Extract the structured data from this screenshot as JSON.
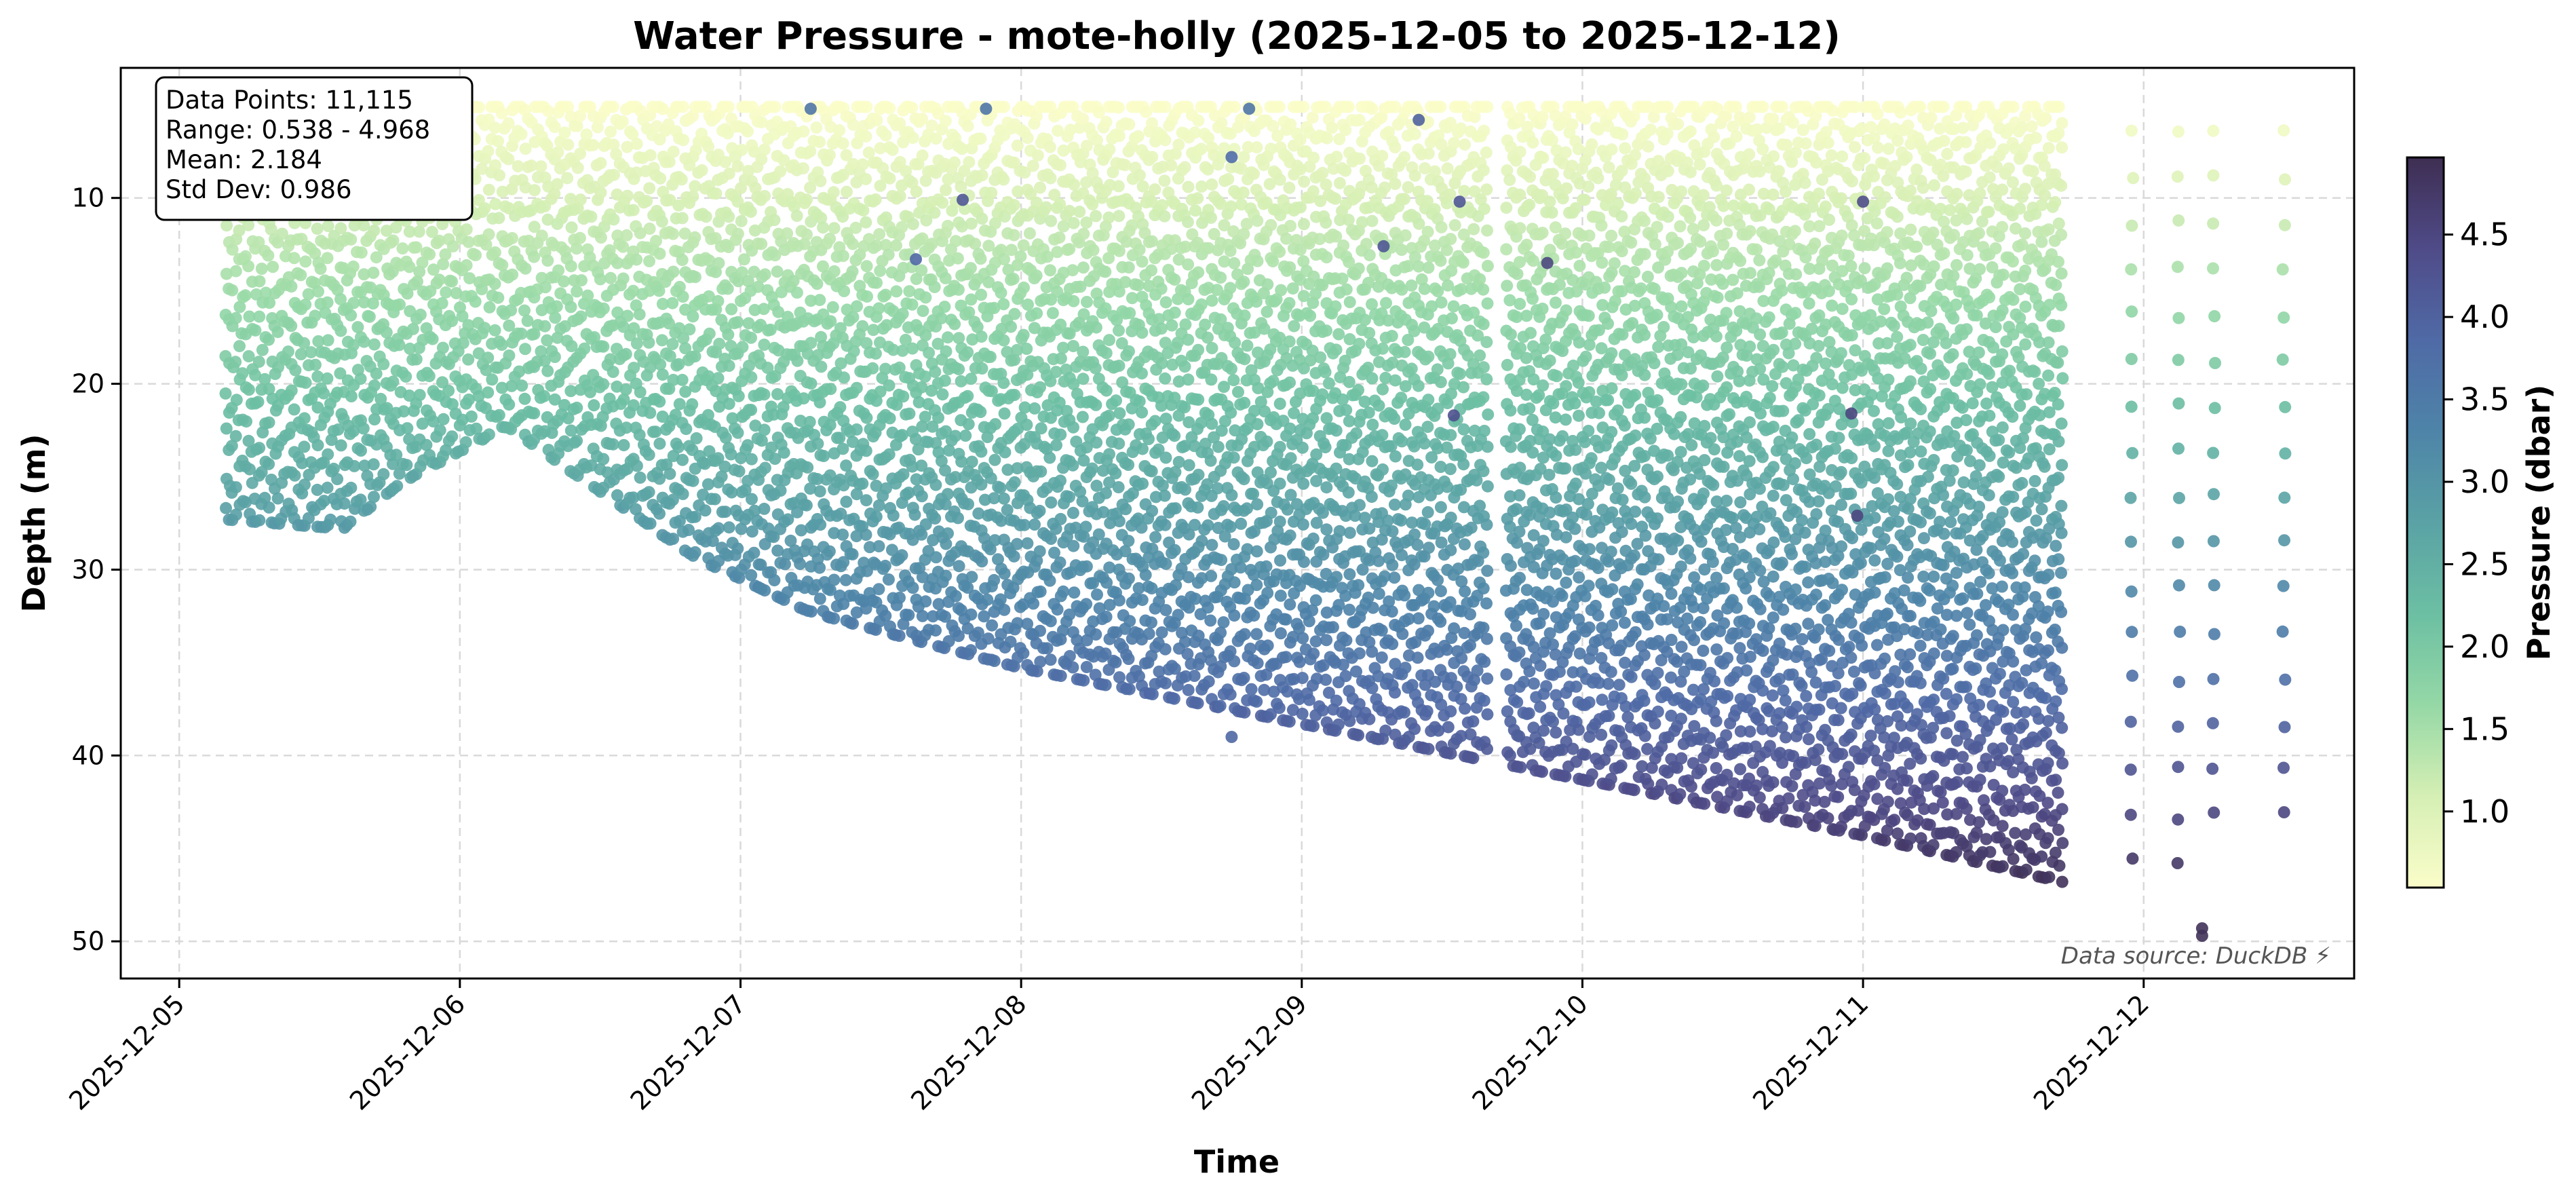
{
  "chart_data": {
    "type": "scatter",
    "title": "Water Pressure - mote-holly (2025-12-05 to 2025-12-12)",
    "xlabel": "Time",
    "ylabel": "Depth (m)",
    "colorbar_label": "Pressure (dbar)",
    "x_ticks": [
      "2025-12-05",
      "2025-12-06",
      "2025-12-07",
      "2025-12-08",
      "2025-12-09",
      "2025-12-10",
      "2025-12-11",
      "2025-12-12"
    ],
    "y_ticks": [
      10,
      20,
      30,
      40,
      50
    ],
    "colorbar_ticks": [
      "1.0",
      "1.5",
      "2.0",
      "2.5",
      "3.0",
      "3.5",
      "4.0",
      "4.5"
    ],
    "xlim": [
      "2025-12-04 19:00",
      "2025-12-12 18:00"
    ],
    "ylim": [
      52,
      3
    ],
    "y_inverted": true,
    "color_range": [
      0.538,
      4.968
    ],
    "colormap": [
      "#fbfdc9",
      "#d5efb4",
      "#95d8a6",
      "#6cbfa3",
      "#5aa2a5",
      "#4e84a8",
      "#4f6aa6",
      "#4f4b88",
      "#3e2e52"
    ],
    "grid": true,
    "stats_box": {
      "lines": [
        "Data Points: 11,115",
        "Range: 0.538 - 4.968",
        "Mean: 2.184",
        "Std Dev: 0.986"
      ],
      "location": "top-left"
    },
    "annotation": "Data source: DuckDB ⚡",
    "annotation_location": "bottom-right",
    "depth_envelope": {
      "description": "dense oscillating profiles from near-surface (~5 m) down to a bottom depth that varies with time",
      "start": "2025-12-05 04:00",
      "dense_end": "2025-12-11 17:00",
      "gap": [
        "2025-12-09 16:00",
        "2025-12-09 17:30"
      ],
      "bottom_profile": [
        {
          "t": "2025-12-05 04:00",
          "max_depth": 27
        },
        {
          "t": "2025-12-05 14:00",
          "max_depth": 27.5
        },
        {
          "t": "2025-12-05 19:00",
          "max_depth": 25
        },
        {
          "t": "2025-12-06 04:00",
          "max_depth": 22
        },
        {
          "t": "2025-12-06 20:00",
          "max_depth": 29
        },
        {
          "t": "2025-12-07 06:00",
          "max_depth": 32
        },
        {
          "t": "2025-12-08 00:00",
          "max_depth": 35
        },
        {
          "t": "2025-12-09 00:00",
          "max_depth": 38
        },
        {
          "t": "2025-12-10 00:00",
          "max_depth": 41
        },
        {
          "t": "2025-12-11 00:00",
          "max_depth": 44
        },
        {
          "t": "2025-12-11 17:00",
          "max_depth": 46.5
        }
      ],
      "sparse_profiles": [
        {
          "t": "2025-12-11 23:00",
          "max_depth": 46
        },
        {
          "t": "2025-12-12 03:00",
          "max_depth": 46
        },
        {
          "t": "2025-12-12 06:00",
          "max_depth": 45.5
        },
        {
          "t": "2025-12-12 12:00",
          "max_depth": 44
        }
      ],
      "outliers": [
        {
          "t": "2025-12-07 06:00",
          "depth": 5.2,
          "pressure": 3.6
        },
        {
          "t": "2025-12-07 21:00",
          "depth": 5.2,
          "pressure": 3.6
        },
        {
          "t": "2025-12-08 19:30",
          "depth": 5.2,
          "pressure": 3.6
        },
        {
          "t": "2025-12-09 10:00",
          "depth": 5.8,
          "pressure": 4.0
        },
        {
          "t": "2025-12-08 18:00",
          "depth": 7.8,
          "pressure": 3.8
        },
        {
          "t": "2025-12-07 19:00",
          "depth": 10.1,
          "pressure": 4.2
        },
        {
          "t": "2025-12-09 13:30",
          "depth": 10.2,
          "pressure": 4.2
        },
        {
          "t": "2025-12-11 00:00",
          "depth": 10.2,
          "pressure": 4.4
        },
        {
          "t": "2025-12-07 15:00",
          "depth": 13.3,
          "pressure": 3.9
        },
        {
          "t": "2025-12-09 21:00",
          "depth": 13.5,
          "pressure": 4.5
        },
        {
          "t": "2025-12-09 07:00",
          "depth": 12.6,
          "pressure": 4.2
        },
        {
          "t": "2025-12-09 13:00",
          "depth": 21.7,
          "pressure": 4.3
        },
        {
          "t": "2025-12-10 23:00",
          "depth": 21.6,
          "pressure": 4.5
        },
        {
          "t": "2025-12-10 23:30",
          "depth": 27.1,
          "pressure": 4.5
        },
        {
          "t": "2025-12-08 18:00",
          "depth": 39.0,
          "pressure": 3.9
        },
        {
          "t": "2025-12-12 05:00",
          "depth": 49.3,
          "pressure": 4.9
        },
        {
          "t": "2025-12-12 05:00",
          "depth": 49.7,
          "pressure": 4.9
        }
      ]
    }
  }
}
